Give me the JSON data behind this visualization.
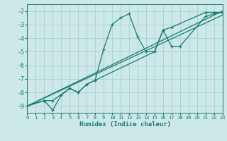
{
  "xlabel": "Humidex (Indice chaleur)",
  "xlim": [
    0,
    23
  ],
  "ylim": [
    -9.5,
    -1.5
  ],
  "yticks": [
    -9,
    -8,
    -7,
    -6,
    -5,
    -4,
    -3,
    -2
  ],
  "xtick_labels": [
    "0",
    "1",
    "2",
    "3",
    "4",
    "5",
    "6",
    "7",
    "8",
    "9",
    "10",
    "11",
    "12",
    "13",
    "14",
    "15",
    "16",
    "17",
    "18",
    "19",
    "20",
    "21",
    "22",
    "23"
  ],
  "xtick_vals": [
    0,
    1,
    2,
    3,
    4,
    5,
    6,
    7,
    8,
    9,
    10,
    11,
    12,
    13,
    14,
    15,
    16,
    17,
    18,
    19,
    20,
    21,
    22,
    23
  ],
  "bg_color": "#cce8e8",
  "grid_color": "#aacfcf",
  "line_color": "#1a7a6e",
  "lines": [
    {
      "x": [
        0,
        2,
        3,
        4,
        5,
        6,
        7,
        8,
        9,
        10,
        11,
        12,
        13,
        14,
        15,
        16,
        17,
        21,
        22,
        23
      ],
      "y": [
        -9.0,
        -8.6,
        -9.3,
        -8.2,
        -7.7,
        -8.0,
        -7.4,
        -7.1,
        -4.8,
        -3.0,
        -2.5,
        -2.2,
        -3.9,
        -5.0,
        -5.0,
        -3.4,
        -3.2,
        -2.1,
        -2.1,
        -2.1
      ],
      "solid": false,
      "marker": true
    },
    {
      "x": [
        0,
        2,
        3,
        5,
        6,
        7,
        8,
        15,
        16,
        17,
        18,
        21,
        22,
        23
      ],
      "y": [
        -9.0,
        -8.6,
        -8.6,
        -7.7,
        -8.0,
        -7.4,
        -7.1,
        -5.0,
        -3.4,
        -4.6,
        -4.6,
        -2.4,
        -2.2,
        -2.1
      ],
      "solid": false,
      "marker": true
    },
    {
      "x": [
        0,
        23
      ],
      "y": [
        -9.0,
        -2.0
      ],
      "solid": true,
      "marker": false
    },
    {
      "x": [
        0,
        23
      ],
      "y": [
        -9.0,
        -2.3
      ],
      "solid": true,
      "marker": false
    }
  ]
}
